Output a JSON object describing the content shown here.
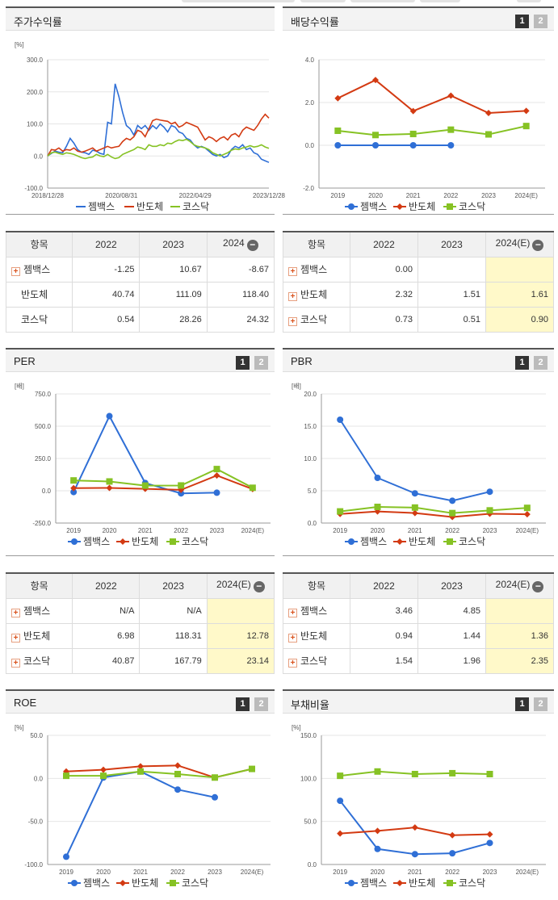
{
  "colors": {
    "s1": "#2f6fd6",
    "s2": "#d33a12",
    "s3": "#86c224"
  },
  "legend": [
    "젬백스",
    "반도체",
    "코스닥"
  ],
  "panels": {
    "stock": {
      "title": "주가수익률",
      "chart_data": {
        "type": "line",
        "unit": "[%]",
        "yticks": [
          "300.0",
          "200.0",
          "100.0",
          "0.0",
          "-100.0"
        ],
        "ylim": [
          -100,
          300
        ],
        "xticks": [
          "2018/12/28",
          "2020/08/31",
          "2022/04/29",
          "2023/12/28"
        ],
        "series": [
          {
            "name": "젬백스",
            "values": [
              0,
              8,
              15,
              12,
              10,
              30,
              55,
              40,
              20,
              12,
              10,
              5,
              18,
              15,
              8,
              5,
              105,
              100,
              225,
              185,
              135,
              95,
              85,
              65,
              95,
              85,
              95,
              80,
              95,
              85,
              100,
              90,
              75,
              95,
              90,
              75,
              70,
              55,
              50,
              35,
              25,
              30,
              25,
              15,
              5,
              0,
              5,
              -5,
              0,
              20,
              30,
              25,
              35,
              20,
              25,
              10,
              5,
              -10,
              -15,
              -20
            ]
          },
          {
            "name": "반도체",
            "values": [
              0,
              20,
              18,
              25,
              15,
              20,
              18,
              25,
              15,
              12,
              15,
              20,
              25,
              15,
              20,
              25,
              30,
              25,
              28,
              30,
              45,
              55,
              50,
              60,
              80,
              75,
              60,
              85,
              110,
              115,
              112,
              110,
              108,
              100,
              105,
              90,
              95,
              105,
              100,
              95,
              90,
              70,
              50,
              60,
              55,
              45,
              55,
              60,
              50,
              65,
              70,
              60,
              80,
              90,
              85,
              80,
              95,
              115,
              130,
              118
            ]
          },
          {
            "name": "코스닥",
            "values": [
              0,
              10,
              12,
              8,
              5,
              10,
              8,
              5,
              0,
              -5,
              -8,
              -5,
              -3,
              5,
              0,
              -2,
              5,
              -3,
              -8,
              -5,
              5,
              10,
              15,
              20,
              28,
              25,
              20,
              35,
              30,
              30,
              35,
              32,
              40,
              38,
              45,
              50,
              48,
              52,
              45,
              35,
              30,
              28,
              25,
              20,
              10,
              5,
              0,
              5,
              10,
              18,
              22,
              20,
              25,
              28,
              32,
              28,
              30,
              35,
              28,
              24
            ]
          }
        ]
      }
    },
    "dividend": {
      "title": "배당수익률",
      "tabs": [
        "1",
        "2"
      ],
      "chart_data": {
        "type": "line",
        "yticks": [
          "4.0",
          "2.0",
          "0.0",
          "-2.0"
        ],
        "ylim": [
          -2,
          4
        ],
        "categories": [
          "2019",
          "2020",
          "2021",
          "2022",
          "2023",
          "2024(E)"
        ],
        "series": [
          {
            "name": "젬백스",
            "values": [
              0.0,
              0.0,
              0.0,
              0.0,
              null,
              null
            ]
          },
          {
            "name": "반도체",
            "values": [
              2.2,
              3.05,
              1.6,
              2.32,
              1.51,
              1.61
            ]
          },
          {
            "name": "코스닥",
            "values": [
              0.68,
              0.48,
              0.53,
              0.73,
              0.51,
              0.9
            ]
          }
        ]
      }
    },
    "per": {
      "title": "PER",
      "tabs": [
        "1",
        "2"
      ],
      "chart_data": {
        "type": "line",
        "unit": "[배]",
        "yticks": [
          "750.0",
          "500.0",
          "250.0",
          "0.0",
          "-250.0"
        ],
        "ylim": [
          -250,
          750
        ],
        "categories": [
          "2019",
          "2020",
          "2021",
          "2022",
          "2023",
          "2024(E)"
        ],
        "series": [
          {
            "name": "젬백스",
            "values": [
              -10,
              578,
              60,
              -20,
              -15,
              null
            ]
          },
          {
            "name": "반도체",
            "values": [
              20,
              22,
              15,
              7,
              118,
              13
            ]
          },
          {
            "name": "코스닥",
            "values": [
              80,
              72,
              40,
              41,
              168,
              23
            ]
          }
        ]
      }
    },
    "pbr": {
      "title": "PBR",
      "tabs": [
        "1",
        "2"
      ],
      "chart_data": {
        "type": "line",
        "unit": "[배]",
        "yticks": [
          "20.0",
          "15.0",
          "10.0",
          "5.0",
          "0.0"
        ],
        "ylim": [
          0,
          20
        ],
        "categories": [
          "2019",
          "2020",
          "2021",
          "2022",
          "2023",
          "2024(E)"
        ],
        "series": [
          {
            "name": "젬백스",
            "values": [
              16.0,
              7.0,
              4.6,
              3.46,
              4.85,
              null
            ]
          },
          {
            "name": "반도체",
            "values": [
              1.4,
              1.8,
              1.55,
              0.94,
              1.44,
              1.36
            ]
          },
          {
            "name": "코스닥",
            "values": [
              1.8,
              2.5,
              2.4,
              1.54,
              1.96,
              2.35
            ]
          }
        ]
      }
    },
    "roe": {
      "title": "ROE",
      "tabs": [
        "1",
        "2"
      ],
      "chart_data": {
        "type": "line",
        "unit": "[%]",
        "yticks": [
          "50.0",
          "0.0",
          "-50.0",
          "-100.0"
        ],
        "ylim": [
          -100,
          50
        ],
        "categories": [
          "2019",
          "2020",
          "2021",
          "2022",
          "2023",
          "2024(E)"
        ],
        "series": [
          {
            "name": "젬백스",
            "values": [
              -91,
              1,
              8,
              -13,
              -22,
              null
            ]
          },
          {
            "name": "반도체",
            "values": [
              8,
              10,
              14,
              15,
              1,
              11
            ]
          },
          {
            "name": "코스닥",
            "values": [
              3,
              3,
              8,
              5,
              1,
              11
            ]
          }
        ]
      }
    },
    "debt": {
      "title": "부채비율",
      "tabs": [
        "1",
        "2"
      ],
      "chart_data": {
        "type": "line",
        "unit": "[%]",
        "yticks": [
          "150.0",
          "100.0",
          "50.0",
          "0.0"
        ],
        "ylim": [
          0,
          150
        ],
        "categories": [
          "2019",
          "2020",
          "2021",
          "2022",
          "2023",
          "2024(E)"
        ],
        "series": [
          {
            "name": "젬백스",
            "values": [
              74,
              18,
              12,
              13,
              25,
              null
            ]
          },
          {
            "name": "반도체",
            "values": [
              36,
              39,
              43,
              34,
              35,
              null
            ]
          },
          {
            "name": "코스닥",
            "values": [
              103,
              108,
              105,
              106,
              105,
              null
            ]
          }
        ]
      }
    }
  },
  "tables": {
    "stock": {
      "headers": [
        "항목",
        "2022",
        "2023",
        "2024"
      ],
      "rows": [
        {
          "name": "젬백스",
          "plus": true,
          "vals": [
            "-1.25",
            "10.67",
            "-8.67"
          ]
        },
        {
          "name": "반도체",
          "plus": false,
          "vals": [
            "40.74",
            "111.09",
            "118.40"
          ]
        },
        {
          "name": "코스닥",
          "plus": false,
          "vals": [
            "0.54",
            "28.26",
            "24.32"
          ]
        }
      ]
    },
    "dividend": {
      "headers": [
        "항목",
        "2022",
        "2023",
        "2024(E)"
      ],
      "rows": [
        {
          "name": "젬백스",
          "plus": true,
          "vals": [
            "0.00",
            "",
            ""
          ]
        },
        {
          "name": "반도체",
          "plus": true,
          "vals": [
            "2.32",
            "1.51",
            "1.61"
          ]
        },
        {
          "name": "코스닥",
          "plus": true,
          "vals": [
            "0.73",
            "0.51",
            "0.90"
          ]
        }
      ]
    },
    "per": {
      "headers": [
        "항목",
        "2022",
        "2023",
        "2024(E)"
      ],
      "rows": [
        {
          "name": "젬백스",
          "plus": true,
          "vals": [
            "N/A",
            "N/A",
            ""
          ]
        },
        {
          "name": "반도체",
          "plus": true,
          "vals": [
            "6.98",
            "118.31",
            "12.78"
          ]
        },
        {
          "name": "코스닥",
          "plus": true,
          "vals": [
            "40.87",
            "167.79",
            "23.14"
          ]
        }
      ]
    },
    "pbr": {
      "headers": [
        "항목",
        "2022",
        "2023",
        "2024(E)"
      ],
      "rows": [
        {
          "name": "젬백스",
          "plus": true,
          "vals": [
            "3.46",
            "4.85",
            ""
          ]
        },
        {
          "name": "반도체",
          "plus": true,
          "vals": [
            "0.94",
            "1.44",
            "1.36"
          ]
        },
        {
          "name": "코스닥",
          "plus": true,
          "vals": [
            "1.54",
            "1.96",
            "2.35"
          ]
        }
      ]
    }
  }
}
